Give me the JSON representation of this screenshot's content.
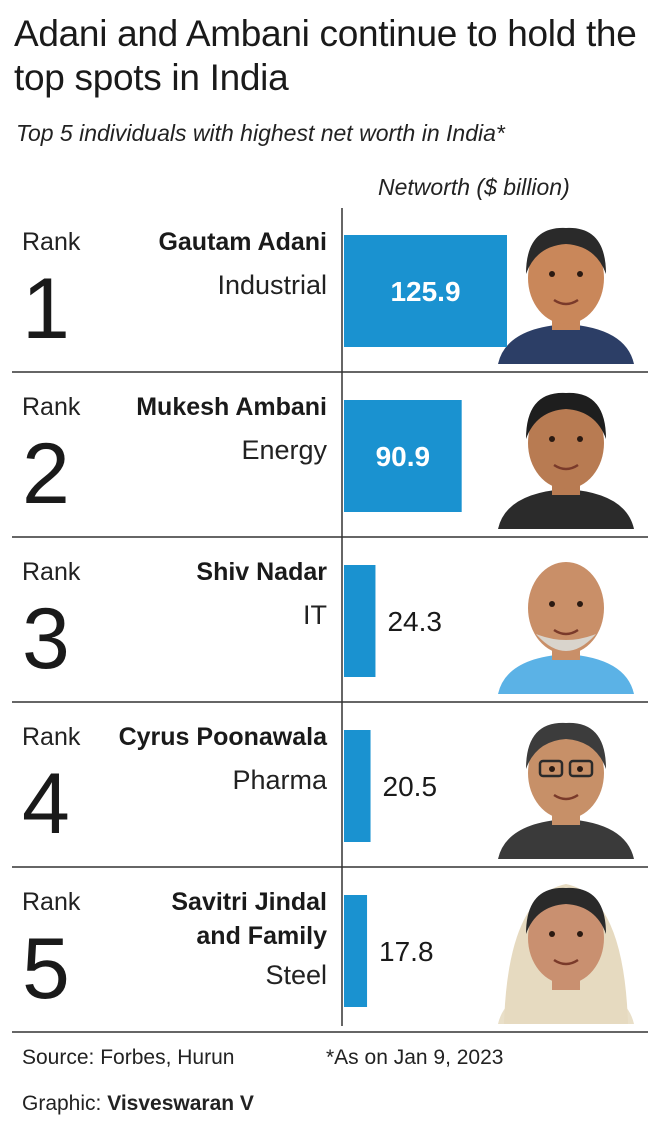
{
  "title": "Adani and Ambani continue to hold the top spots in India",
  "subtitle": "Top 5 individuals with highest net worth in India*",
  "chart_data": {
    "type": "bar",
    "orientation": "horizontal",
    "axis_label": "Networth ($ billion)",
    "rank_label": "Rank",
    "categories": [
      "Gautam Adani",
      "Mukesh Ambani",
      "Shiv Nadar",
      "Cyrus Poonawala",
      "Savitri Jindal and Family"
    ],
    "values": [
      125.9,
      90.9,
      24.3,
      20.5,
      17.8
    ],
    "rows": [
      {
        "rank": "1",
        "name_lines": [
          "Gautam Adani"
        ],
        "sector": "Industrial",
        "value": 125.9,
        "value_label": "125.9"
      },
      {
        "rank": "2",
        "name_lines": [
          "Mukesh Ambani"
        ],
        "sector": "Energy",
        "value": 90.9,
        "value_label": "90.9"
      },
      {
        "rank": "3",
        "name_lines": [
          "Shiv Nadar"
        ],
        "sector": "IT",
        "value": 24.3,
        "value_label": "24.3"
      },
      {
        "rank": "4",
        "name_lines": [
          "Cyrus Poonawala"
        ],
        "sector": "Pharma",
        "value": 20.5,
        "value_label": "20.5"
      },
      {
        "rank": "5",
        "name_lines": [
          "Savitri Jindal",
          "and Family"
        ],
        "sector": "Steel",
        "value": 17.8,
        "value_label": "17.8"
      }
    ],
    "bar_color": "#1a92d0",
    "xlim": [
      0,
      125.9
    ],
    "grid": false
  },
  "footer": {
    "source": "Source: Forbes, Hurun",
    "note": "*As on Jan 9, 2023",
    "graphic_prefix": "Graphic:",
    "graphic_author": "Visveswaran V"
  }
}
